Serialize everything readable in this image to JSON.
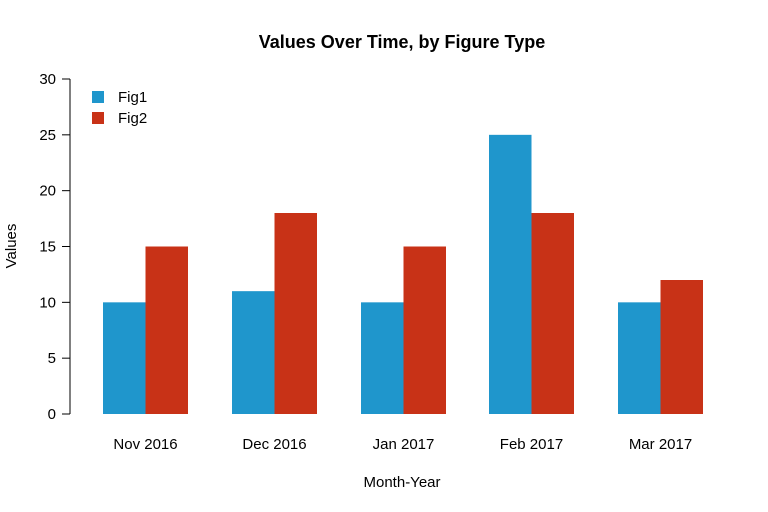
{
  "chart_data": {
    "type": "bar",
    "title": "Values Over Time, by Figure Type",
    "xlabel": "Month-Year",
    "ylabel": "Values",
    "categories": [
      "Nov 2016",
      "Dec 2016",
      "Jan 2017",
      "Feb 2017",
      "Mar 2017"
    ],
    "series": [
      {
        "name": "Fig1",
        "values": [
          10,
          11,
          10,
          25,
          10
        ],
        "color": "#1f96cc"
      },
      {
        "name": "Fig2",
        "values": [
          15,
          18,
          15,
          18,
          12
        ],
        "color": "#c83217"
      }
    ],
    "ylim": [
      0,
      30
    ],
    "yticks": [
      0,
      5,
      10,
      15,
      20,
      25,
      30
    ],
    "grid": false,
    "legend_position": "top-left"
  }
}
